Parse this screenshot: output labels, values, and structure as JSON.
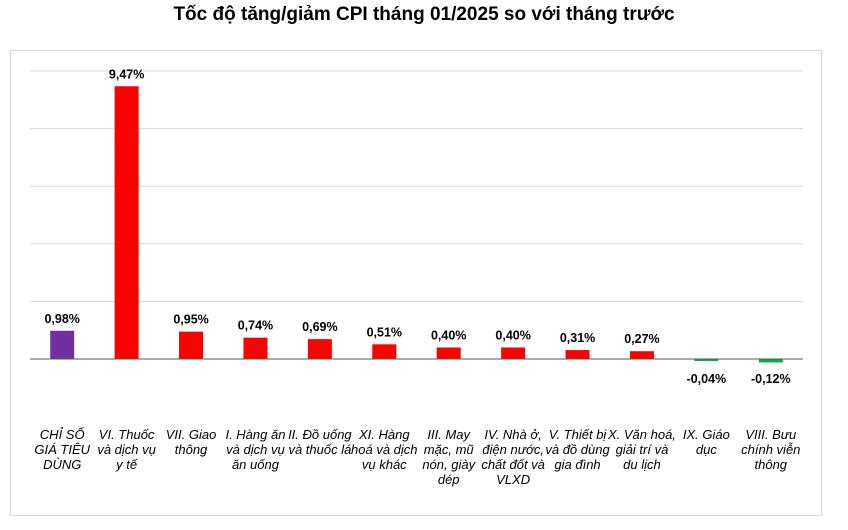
{
  "chart_data": {
    "type": "bar",
    "title": "Tốc độ tăng/giảm CPI tháng 01/2025 so với tháng trước",
    "xlabel": "",
    "ylabel": "",
    "ylim": [
      -2,
      10
    ],
    "grid": true,
    "legend": "none",
    "categories": [
      "CHỈ SỐ GIÁ TIÊU DÙNG",
      "VI. Thuốc và dịch vụ y tế",
      "VII. Giao thông",
      "I. Hàng ăn và dịch vụ ăn uống",
      "II. Đồ uống và thuốc lá",
      "XI. Hàng hoá và dịch vụ khác",
      "III. May mặc, mũ nón, giày dép",
      "IV. Nhà ở, điện nước, chất đốt và VLXD",
      "V. Thiết bị và đồ dùng gia đình",
      "X. Văn hoá, giải trí và du lịch",
      "IX. Giáo dục",
      "VIII. Bưu chính viễn thông"
    ],
    "values": [
      0.98,
      9.47,
      0.95,
      0.74,
      0.69,
      0.51,
      0.4,
      0.4,
      0.31,
      0.27,
      -0.04,
      -0.12
    ],
    "data_labels": [
      "0,98%",
      "9,47%",
      "0,95%",
      "0,74%",
      "0,69%",
      "0,51%",
      "0,40%",
      "0,40%",
      "0,31%",
      "0,27%",
      "-0,04%",
      "-0,12%"
    ],
    "colors": [
      "#7030a0",
      "#ff0000",
      "#ff0000",
      "#ff0000",
      "#ff0000",
      "#ff0000",
      "#ff0000",
      "#ff0000",
      "#ff0000",
      "#ff0000",
      "#00b050",
      "#00b050"
    ]
  }
}
